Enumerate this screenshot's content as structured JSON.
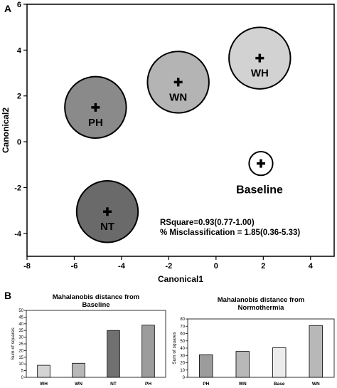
{
  "panel_labels": {
    "a": "A",
    "b": "B"
  },
  "colors": {
    "PH": "#8a8a8a",
    "WN": "#b4b4b4",
    "WH": "#d2d2d2",
    "NT": "#6a6a6a",
    "Baseline": "#ffffff",
    "bar_WH": "#d4d4d4",
    "bar_WN": "#b8b8b8",
    "bar_NT": "#707070",
    "bar_PH": "#9c9c9c",
    "bar_Base": "#ececec"
  },
  "chart_data": [
    {
      "type": "scatter",
      "xlabel": "Canonical1",
      "ylabel": "Canonical2",
      "xlim": [
        -8,
        5
      ],
      "ylim": [
        -5,
        6
      ],
      "xticks": [
        -8,
        -6,
        -4,
        -2,
        0,
        2,
        4
      ],
      "yticks": [
        -4,
        -2,
        0,
        2,
        4,
        6
      ],
      "points": [
        {
          "label": "PH",
          "x": -5.1,
          "y": 1.5,
          "radius": 1.3
        },
        {
          "label": "WN",
          "x": -1.6,
          "y": 2.6,
          "radius": 1.3
        },
        {
          "label": "WH",
          "x": 1.85,
          "y": 3.65,
          "radius": 1.3
        },
        {
          "label": "NT",
          "x": -4.6,
          "y": -3.05,
          "radius": 1.3
        },
        {
          "label": "Baseline",
          "x": 1.9,
          "y": -0.95,
          "radius": 0.5
        }
      ],
      "annotations": [
        "RSquare=0.93(0.77-1.00)",
        "% Misclassification = 1.85(0.36-5.33)"
      ]
    },
    {
      "type": "bar",
      "title": "Mahalanobis distance from Baseline",
      "title_lines": [
        "Mahalanobis distance from",
        "Baseline"
      ],
      "ylabel": "Sum of squares",
      "ylim": [
        0,
        50
      ],
      "yticks": [
        0,
        5,
        10,
        15,
        20,
        25,
        30,
        35,
        40,
        45,
        50
      ],
      "categories": [
        "WH",
        "WN",
        "NT",
        "PH"
      ],
      "values": [
        9,
        10.5,
        35,
        39
      ]
    },
    {
      "type": "bar",
      "title": "Mahalanobis distance from Normothermia",
      "title_lines": [
        "Mahalanobis distance from",
        "Normothermia"
      ],
      "ylabel": "Sum of squares",
      "ylim": [
        0,
        80
      ],
      "yticks": [
        0,
        10,
        20,
        30,
        40,
        50,
        60,
        70,
        80
      ],
      "categories": [
        "PH",
        "WN",
        "Base",
        "WN"
      ],
      "values": [
        31,
        35.5,
        40.5,
        71
      ]
    }
  ]
}
